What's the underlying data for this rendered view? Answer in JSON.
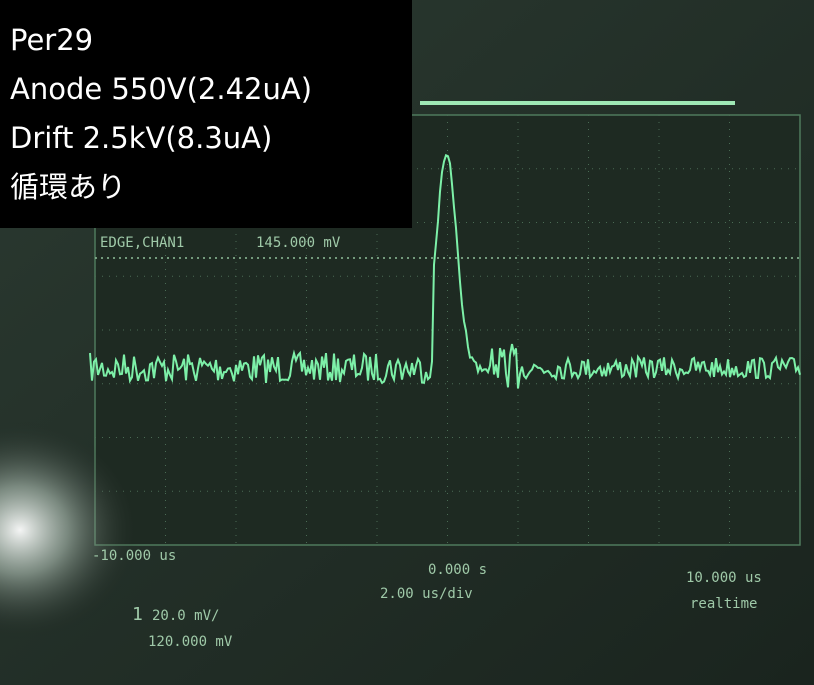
{
  "overlay": {
    "lines": [
      "Per29",
      "Anode 550V(2.42uA)",
      "Drift 2.5kV(8.3uA)",
      "循環あり"
    ]
  },
  "scope": {
    "trigger": {
      "source": "EDGE,CHAN1",
      "level": "145.000 mV"
    },
    "time_left": "-10.000 us",
    "time_center": "0.000 s",
    "timebase": "2.00 us/div",
    "time_right": "10.000 us",
    "mode": "realtime",
    "channel": {
      "number": "1",
      "scale": "20.0 mV/",
      "offset": "120.000 mV"
    }
  }
}
